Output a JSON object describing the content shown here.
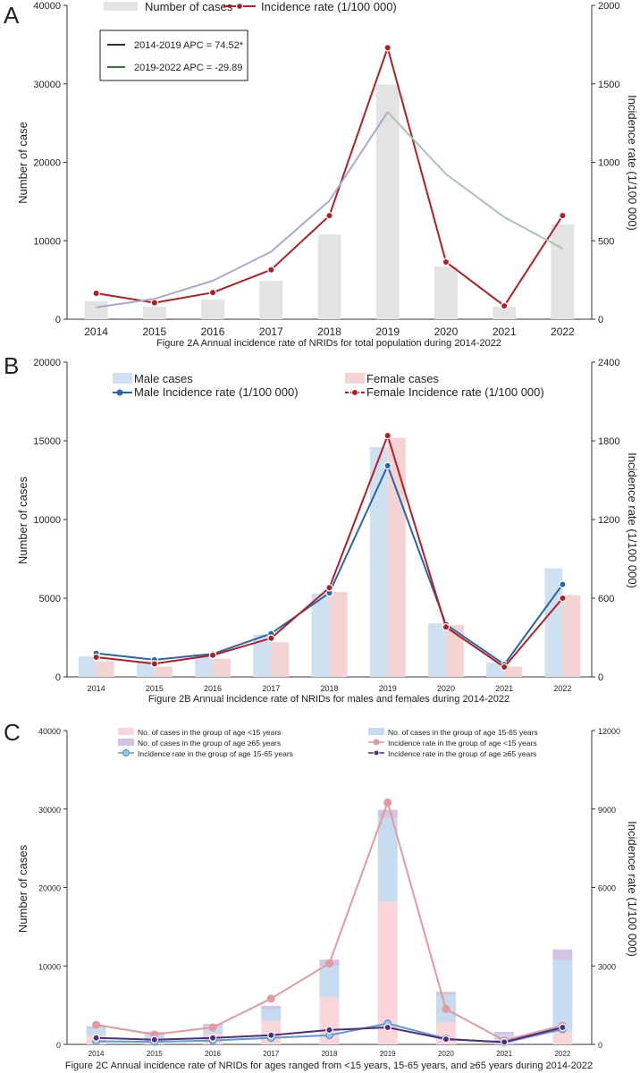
{
  "chart_data": [
    {
      "panel_label": "A",
      "type": "bar+line",
      "caption": "Figure 2A Annual incidence rate of NRIDs for total population during 2014-2022",
      "categories": [
        "2014",
        "2015",
        "2016",
        "2017",
        "2018",
        "2019",
        "2020",
        "2021",
        "2022"
      ],
      "ylabel_left": "Number of case",
      "ylabel_right": "Incidence rate (1/100 000)",
      "ylim_left": [
        0,
        40000
      ],
      "yticks_left": [
        0,
        10000,
        20000,
        30000,
        40000
      ],
      "ylim_right": [
        0,
        2000
      ],
      "yticks_right": [
        0,
        500,
        1000,
        1500,
        2000
      ],
      "legend": {
        "bars": "Number of cases",
        "line": "Incidence rate (1/100 000)"
      },
      "apc_box": [
        "2014-2019 APC = 74.52*",
        "2019-2022 APC = -29.89"
      ],
      "bars": [
        {
          "name": "Number of cases",
          "color": "#e3e3e3",
          "values": [
            2300,
            1600,
            2500,
            4900,
            10800,
            29900,
            6700,
            1600,
            12100
          ]
        }
      ],
      "lines": [
        {
          "name": "Incidence rate (1/100 000)",
          "color": "#b81c22",
          "marker": "filled-dot",
          "values": [
            165,
            105,
            170,
            315,
            660,
            1730,
            365,
            85,
            660
          ]
        },
        {
          "name": "trend 2014-2019",
          "color": "#a9a9cf",
          "marker": "none",
          "x_index": [
            0,
            1,
            2,
            3,
            4,
            5
          ],
          "values": [
            75,
            130,
            245,
            430,
            755,
            1320
          ]
        },
        {
          "name": "trend 2019-2022",
          "color": "#a9c4b0",
          "marker": "none",
          "x_index": [
            5,
            6,
            7,
            8
          ],
          "values": [
            1320,
            925,
            650,
            450
          ]
        }
      ]
    },
    {
      "panel_label": "B",
      "type": "bar+line",
      "caption": "Figure 2B Annual incidence rate of NRIDs for males and females during 2014-2022",
      "categories": [
        "2014",
        "2015",
        "2016",
        "2017",
        "2018",
        "2019",
        "2020",
        "2021",
        "2022"
      ],
      "ylabel_left": "Number of cases",
      "ylabel_right": "Incidence rate (1/100 000)",
      "ylim_left": [
        0,
        20000
      ],
      "yticks_left": [
        0,
        5000,
        10000,
        15000,
        20000
      ],
      "ylim_right": [
        0,
        2400
      ],
      "yticks_right": [
        0,
        600,
        1200,
        1800,
        2400
      ],
      "legend": {
        "male_bars": "Male cases",
        "female_bars": "Female cases",
        "male_line": "Male Incidence rate (1/100 000)",
        "female_line": "Female Incidence rate (1/100 000)"
      },
      "bars": [
        {
          "name": "Male cases",
          "color": "#cfe0f1",
          "values": [
            1300,
            1000,
            1300,
            2700,
            5300,
            14600,
            3400,
            900,
            6900
          ]
        },
        {
          "name": "Female cases",
          "color": "#f4d3d5",
          "values": [
            1000,
            650,
            1150,
            2200,
            5400,
            15200,
            3300,
            650,
            5200
          ]
        }
      ],
      "lines": [
        {
          "name": "Male Incidence rate (1/100 000)",
          "color": "#2468a8",
          "marker": "filled-dot",
          "values": [
            180,
            130,
            175,
            330,
            640,
            1610,
            400,
            95,
            705
          ]
        },
        {
          "name": "Female Incidence rate (1/100 000)",
          "color": "#b81c22",
          "marker": "filled-dot",
          "values": [
            150,
            100,
            165,
            295,
            680,
            1840,
            380,
            75,
            600
          ]
        }
      ]
    },
    {
      "panel_label": "C",
      "type": "stacked-bar+line",
      "caption": "Figure 2C Annual incidence rate of NRIDs for ages ranged from <15 years, 15-65 years, and ≥65 years during 2014-2022",
      "categories": [
        "2014",
        "2015",
        "2016",
        "2017",
        "2018",
        "2019",
        "2020",
        "2021",
        "2022"
      ],
      "ylabel_left": "Number of cases",
      "ylabel_right": "Incidence rate (1/100 000)",
      "ylim_left": [
        0,
        40000
      ],
      "yticks_left": [
        0,
        10000,
        20000,
        30000,
        40000
      ],
      "ylim_right": [
        0,
        12000
      ],
      "yticks_right": [
        0,
        3000,
        6000,
        9000,
        12000
      ],
      "legend": {
        "bar_lt15": "No. of cases in the group of age <15 years",
        "bar_15_65": "No. of cases in the group of age 15-65 years",
        "bar_ge65": "No. of cases in the group of age ≥65 years",
        "line_lt15": "Incidence rate in the group of age <15 years",
        "line_15_65": "Incidence rate in the group of age 15-65 years",
        "line_ge65": "Incidence rate in the group of age ≥65 years"
      },
      "bars_stacked": [
        {
          "name": "No. of cases in the group of age <15 years",
          "color": "#f8d6da",
          "values": [
            1200,
            600,
            1300,
            3000,
            6000,
            18200,
            2800,
            400,
            1600
          ]
        },
        {
          "name": "No. of cases in the group of age 15-65 years",
          "color": "#c6dbf0",
          "values": [
            900,
            800,
            1000,
            1500,
            4000,
            10700,
            3500,
            900,
            9100
          ]
        },
        {
          "name": "No. of cases in the group of age ≥65 years",
          "color": "#d2c4e2",
          "values": [
            200,
            200,
            300,
            400,
            800,
            1000,
            400,
            300,
            1400
          ]
        }
      ],
      "lines": [
        {
          "name": "Incidence rate in the group of age <15 years",
          "color": "#e5999c",
          "marker": "big-dot",
          "values": [
            750,
            380,
            650,
            1750,
            3100,
            9250,
            1350,
            150,
            720
          ]
        },
        {
          "name": "Incidence rate in the group of age 15-65 years",
          "color": "#5b9bd0",
          "marker": "ringed-dot",
          "values": [
            120,
            100,
            150,
            250,
            350,
            800,
            220,
            70,
            580
          ]
        },
        {
          "name": "Incidence rate in the group of age ≥65 years",
          "color": "#4f2d7f",
          "marker": "filled-dot",
          "values": [
            250,
            180,
            250,
            350,
            550,
            650,
            200,
            90,
            650
          ]
        }
      ]
    }
  ]
}
